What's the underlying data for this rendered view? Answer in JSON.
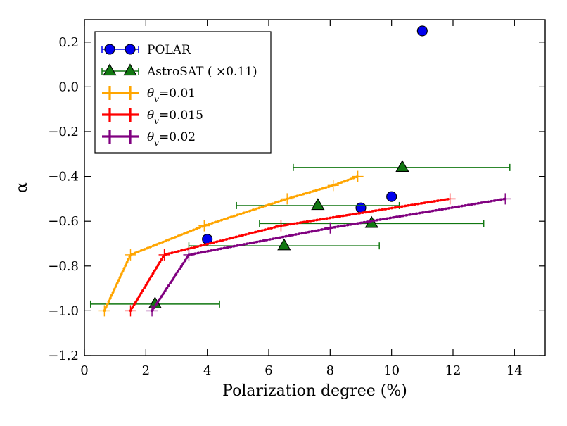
{
  "chart_data": {
    "type": "scatter",
    "title": "",
    "xlabel": "Polarization degree (%)",
    "ylabel": "α",
    "xlim": [
      0,
      15
    ],
    "ylim": [
      -1.2,
      0.3
    ],
    "xticks": [
      0,
      2,
      4,
      6,
      8,
      10,
      12,
      14
    ],
    "yticks": [
      -1.2,
      -1.0,
      -0.8,
      -0.6,
      -0.4,
      -0.2,
      0.0,
      0.2
    ],
    "xtick_labels": [
      "0",
      "2",
      "4",
      "6",
      "8",
      "10",
      "12",
      "14"
    ],
    "ytick_labels": [
      "−1.2",
      "−1.0",
      "−0.8",
      "−0.6",
      "−0.4",
      "−0.2",
      "0.0",
      "0.2"
    ],
    "grid": false,
    "legend_position": "top-left",
    "series": [
      {
        "name": "POLAR",
        "legend_parts": [
          "POLAR"
        ],
        "kind": "points",
        "marker": "circle",
        "color": "#0000ee",
        "points": [
          {
            "x": 4.0,
            "y": -0.68
          },
          {
            "x": 9.0,
            "y": -0.54
          },
          {
            "x": 10.0,
            "y": -0.49
          },
          {
            "x": 11.0,
            "y": 0.25
          }
        ]
      },
      {
        "name": "AstroSAT ( ×0.11)",
        "legend_parts": [
          "AstroSAT ( ×0.11)"
        ],
        "kind": "points",
        "marker": "triangle",
        "color": "#117711",
        "points": [
          {
            "x": 2.3,
            "y": -0.97,
            "xerr": [
              0.2,
              4.4
            ]
          },
          {
            "x": 6.5,
            "y": -0.71,
            "xerr": [
              3.4,
              9.6
            ]
          },
          {
            "x": 7.6,
            "y": -0.53,
            "xerr": [
              4.95,
              10.25
            ]
          },
          {
            "x": 9.35,
            "y": -0.61,
            "xerr": [
              5.7,
              13.0
            ]
          },
          {
            "x": 10.35,
            "y": -0.36,
            "xerr": [
              6.8,
              13.85
            ]
          }
        ]
      },
      {
        "name": "θv=0.01",
        "legend_parts": [
          "θ",
          "v",
          "=0.01"
        ],
        "kind": "curve",
        "marker": "plus",
        "color": "#ffa500",
        "points": [
          {
            "x": 0.65,
            "y": -1.0
          },
          {
            "x": 1.5,
            "y": -0.75
          },
          {
            "x": 3.9,
            "y": -0.62
          },
          {
            "x": 6.6,
            "y": -0.5
          },
          {
            "x": 8.1,
            "y": -0.44
          },
          {
            "x": 8.9,
            "y": -0.4
          }
        ]
      },
      {
        "name": "θv=0.015",
        "legend_parts": [
          "θ",
          "v",
          "=0.015"
        ],
        "kind": "curve",
        "marker": "plus",
        "color": "#ff0000",
        "points": [
          {
            "x": 1.5,
            "y": -1.0
          },
          {
            "x": 2.6,
            "y": -0.75
          },
          {
            "x": 6.4,
            "y": -0.62
          },
          {
            "x": 11.9,
            "y": -0.5
          }
        ]
      },
      {
        "name": "θv=0.02",
        "legend_parts": [
          "θ",
          "v",
          "=0.02"
        ],
        "kind": "curve",
        "marker": "plus",
        "color": "#800080",
        "points": [
          {
            "x": 2.2,
            "y": -1.0
          },
          {
            "x": 3.4,
            "y": -0.75
          },
          {
            "x": 8.0,
            "y": -0.63
          },
          {
            "x": 13.7,
            "y": -0.5
          }
        ]
      }
    ]
  }
}
